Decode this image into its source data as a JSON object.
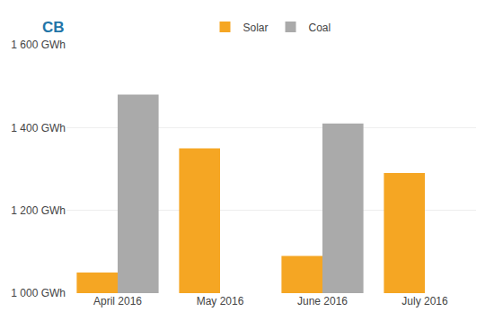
{
  "chart_data": {
    "type": "bar",
    "categories": [
      "April 2016",
      "May 2016",
      "June 2016",
      "July 2016"
    ],
    "series": [
      {
        "name": "Solar",
        "color": "#F5A623",
        "values": [
          1050,
          1350,
          1090,
          1290
        ]
      },
      {
        "name": "Coal",
        "color": "#AAAAAA",
        "values": [
          1480,
          null,
          1410,
          null
        ]
      }
    ],
    "ylim": [
      1000,
      1600
    ],
    "yticks": [
      {
        "value": 1000,
        "label": "1 000 GWh"
      },
      {
        "value": 1200,
        "label": "1 200 GWh"
      },
      {
        "value": 1400,
        "label": "1 400 GWh"
      },
      {
        "value": 1600,
        "label": "1 600 GWh"
      }
    ],
    "grid": true,
    "legend": "top",
    "annotations": [
      {
        "text": "CB",
        "color": "#2275a8"
      }
    ]
  }
}
